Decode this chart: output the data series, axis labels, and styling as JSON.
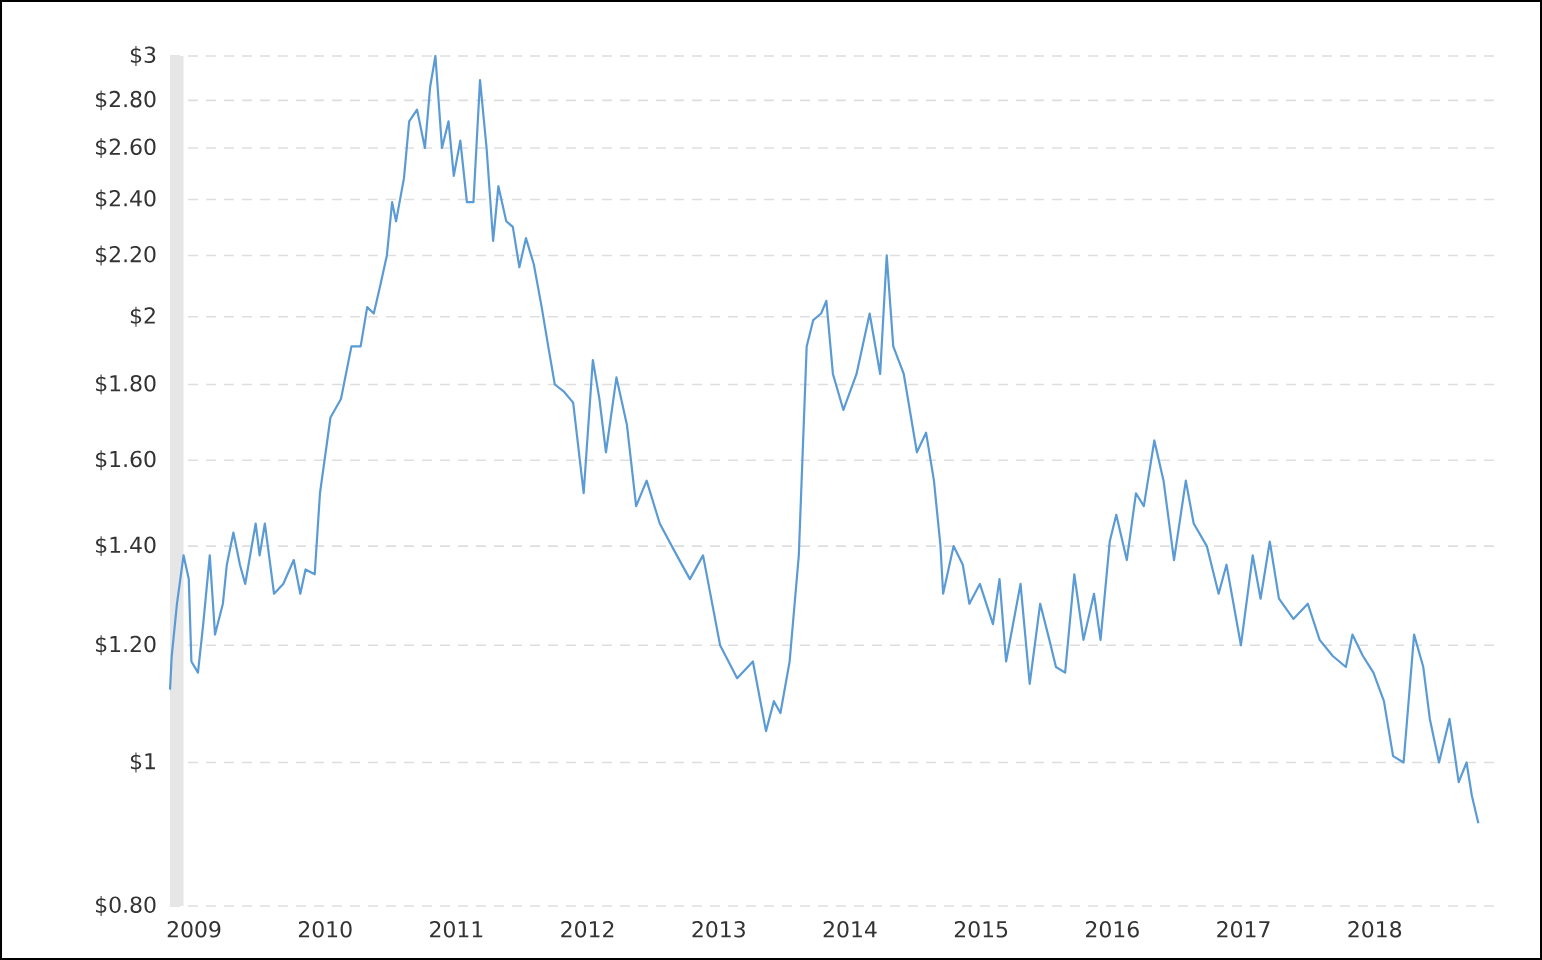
{
  "chart_data": {
    "type": "line",
    "log": "y",
    "grid": "y",
    "line_style": "solid",
    "xlim": [
      2008.817,
      2018.955
    ],
    "ylim": [
      0.8,
      3
    ],
    "xticks": [
      2009,
      2010,
      2011,
      2012,
      2013,
      2014,
      2015,
      2016,
      2017,
      2018
    ],
    "yticks": [
      {
        "value": 0.8,
        "label": "$0.80"
      },
      {
        "value": 1,
        "label": "$1"
      },
      {
        "value": 1.2,
        "label": "$1.20"
      },
      {
        "value": 1.4,
        "label": "$1.40"
      },
      {
        "value": 1.6,
        "label": "$1.60"
      },
      {
        "value": 1.8,
        "label": "$1.80"
      },
      {
        "value": 2,
        "label": "$2"
      },
      {
        "value": 2.2,
        "label": "$2.20"
      },
      {
        "value": 2.4,
        "label": "$2.40"
      },
      {
        "value": 2.6,
        "label": "$2.60"
      },
      {
        "value": 2.8,
        "label": "$2.80"
      },
      {
        "value": 3,
        "label": "$3"
      }
    ],
    "bands": [
      {
        "axis": "x",
        "from": 2008.817,
        "to": 2008.92,
        "color": "#e6e6e6"
      }
    ],
    "series": [
      {
        "color": "#5b9bd5",
        "x": [
          2008.817,
          2008.83,
          2008.87,
          2008.92,
          2008.96,
          2008.98,
          2009.03,
          2009.07,
          2009.12,
          2009.16,
          2009.22,
          2009.25,
          2009.3,
          2009.35,
          2009.39,
          2009.47,
          2009.5,
          2009.54,
          2009.61,
          2009.68,
          2009.76,
          2009.81,
          2009.85,
          2009.92,
          2009.96,
          2010.04,
          2010.12,
          2010.2,
          2010.27,
          2010.32,
          2010.37,
          2010.42,
          2010.47,
          2010.51,
          2010.54,
          2010.6,
          2010.64,
          2010.7,
          2010.76,
          2010.8,
          2010.84,
          2010.89,
          2010.94,
          2010.98,
          2011.03,
          2011.08,
          2011.13,
          2011.18,
          2011.23,
          2011.28,
          2011.32,
          2011.38,
          2011.43,
          2011.48,
          2011.53,
          2011.59,
          2011.65,
          2011.7,
          2011.75,
          2011.82,
          2011.89,
          2011.97,
          2012.04,
          2012.09,
          2012.14,
          2012.22,
          2012.3,
          2012.37,
          2012.45,
          2012.55,
          2012.68,
          2012.78,
          2012.88,
          2013.01,
          2013.14,
          2013.26,
          2013.36,
          2013.42,
          2013.47,
          2013.54,
          2013.61,
          2013.67,
          2013.72,
          2013.78,
          2013.82,
          2013.87,
          2013.95,
          2014.05,
          2014.15,
          2014.23,
          2014.28,
          2014.33,
          2014.41,
          2014.51,
          2014.58,
          2014.64,
          2014.69,
          2014.71,
          2014.79,
          2014.86,
          2014.91,
          2014.99,
          2015.09,
          2015.14,
          2015.19,
          2015.3,
          2015.37,
          2015.45,
          2015.52,
          2015.57,
          2015.64,
          2015.71,
          2015.78,
          2015.86,
          2015.91,
          2015.98,
          2016.03,
          2016.11,
          2016.18,
          2016.24,
          2016.32,
          2016.39,
          2016.47,
          2016.56,
          2016.62,
          2016.72,
          2016.81,
          2016.87,
          2016.98,
          2017.07,
          2017.13,
          2017.2,
          2017.27,
          2017.38,
          2017.49,
          2017.58,
          2017.68,
          2017.78,
          2017.83,
          2017.91,
          2017.99,
          2018.07,
          2018.14,
          2018.22,
          2018.3,
          2018.37,
          2018.42,
          2018.49,
          2018.57,
          2018.64,
          2018.7,
          2018.74,
          2018.79
        ],
        "values": [
          1.12,
          1.18,
          1.28,
          1.38,
          1.33,
          1.17,
          1.15,
          1.24,
          1.38,
          1.22,
          1.28,
          1.36,
          1.43,
          1.36,
          1.32,
          1.45,
          1.38,
          1.45,
          1.3,
          1.32,
          1.37,
          1.3,
          1.35,
          1.34,
          1.52,
          1.71,
          1.76,
          1.91,
          1.91,
          2.03,
          2.01,
          2.1,
          2.2,
          2.39,
          2.32,
          2.48,
          2.71,
          2.76,
          2.6,
          2.86,
          3.0,
          2.6,
          2.71,
          2.49,
          2.63,
          2.39,
          2.39,
          2.89,
          2.6,
          2.25,
          2.45,
          2.32,
          2.3,
          2.16,
          2.26,
          2.17,
          2.03,
          1.91,
          1.8,
          1.78,
          1.75,
          1.52,
          1.87,
          1.76,
          1.62,
          1.82,
          1.69,
          1.49,
          1.55,
          1.45,
          1.38,
          1.33,
          1.38,
          1.2,
          1.14,
          1.17,
          1.05,
          1.1,
          1.08,
          1.17,
          1.38,
          1.91,
          1.99,
          2.01,
          2.05,
          1.83,
          1.73,
          1.83,
          2.01,
          1.83,
          2.2,
          1.91,
          1.83,
          1.62,
          1.67,
          1.55,
          1.4,
          1.3,
          1.4,
          1.36,
          1.28,
          1.32,
          1.24,
          1.33,
          1.17,
          1.32,
          1.13,
          1.28,
          1.21,
          1.16,
          1.15,
          1.34,
          1.21,
          1.3,
          1.21,
          1.41,
          1.47,
          1.37,
          1.52,
          1.49,
          1.65,
          1.55,
          1.37,
          1.55,
          1.45,
          1.4,
          1.3,
          1.36,
          1.2,
          1.38,
          1.29,
          1.41,
          1.29,
          1.25,
          1.28,
          1.21,
          1.18,
          1.16,
          1.22,
          1.18,
          1.15,
          1.1,
          1.01,
          1.0,
          1.22,
          1.16,
          1.07,
          1.0,
          1.07,
          0.97,
          1.0,
          0.95,
          0.91
        ]
      }
    ]
  }
}
